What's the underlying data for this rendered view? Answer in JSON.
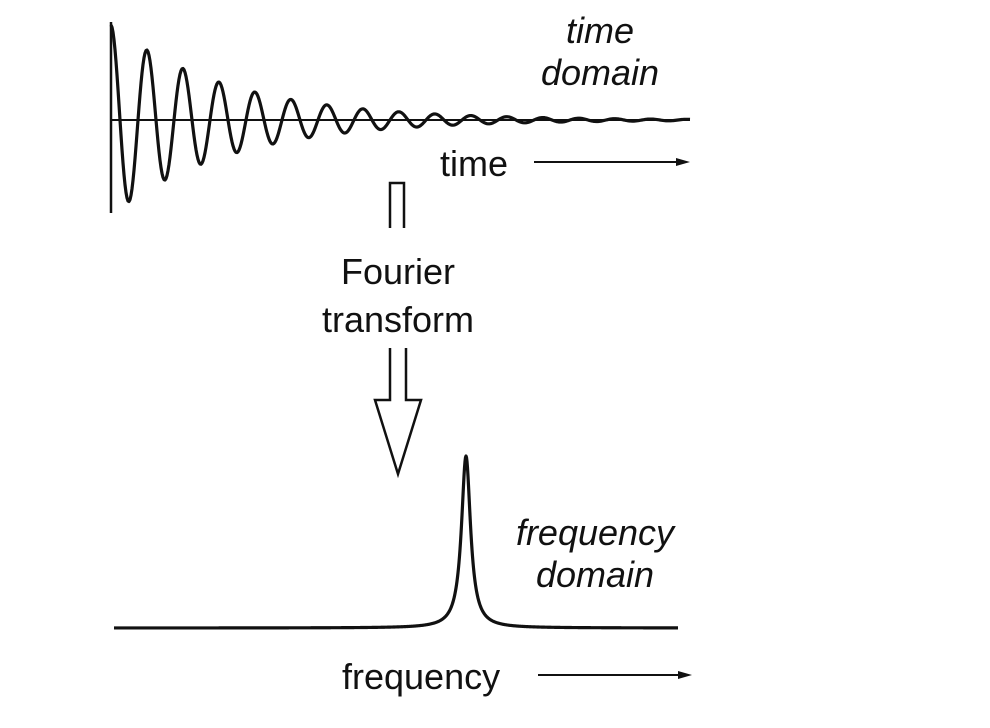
{
  "time_domain_panel": {
    "title_line1": "time",
    "title_line2": "domain",
    "axis_label": "time"
  },
  "transform": {
    "label_line1": "Fourier",
    "label_line2": "transform"
  },
  "frequency_domain_panel": {
    "title_line1": "frequency",
    "title_line2": "domain",
    "axis_label": "frequency"
  },
  "colors": {
    "ink": "#111111",
    "background": "#ffffff"
  }
}
